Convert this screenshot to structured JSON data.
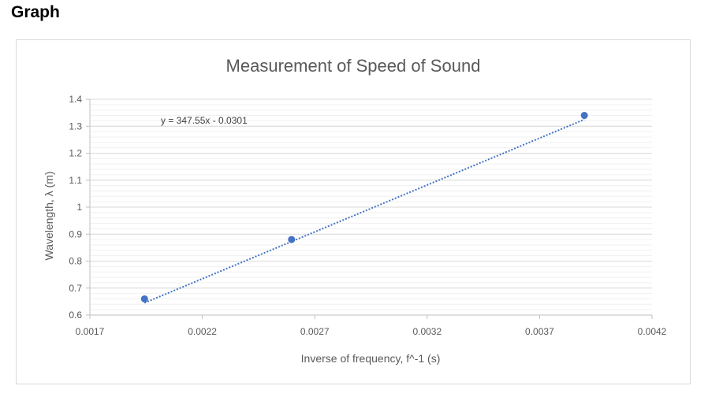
{
  "page": {
    "heading": "Graph"
  },
  "chart_data": {
    "type": "scatter",
    "title": "Measurement of Speed of Sound",
    "xlabel": "Inverse of frequency, f^-1 (s)",
    "ylabel": "Wavelength, λ (m)",
    "xlim": [
      0.0017,
      0.0042
    ],
    "ylim": [
      0.6,
      1.4
    ],
    "x_ticks": [
      0.0017,
      0.0022,
      0.0027,
      0.0032,
      0.0037,
      0.0042
    ],
    "x_tick_labels": [
      "0.0017",
      "0.0022",
      "0.0027",
      "0.0032",
      "0.0037",
      "0.0042"
    ],
    "y_ticks": [
      0.6,
      0.7,
      0.8,
      0.9,
      1.0,
      1.1,
      1.2,
      1.3,
      1.4
    ],
    "y_tick_labels": [
      "0.6",
      "0.7",
      "0.8",
      "0.9",
      "1",
      "1.1",
      "1.2",
      "1.3",
      "1.4"
    ],
    "minor_gridlines": true,
    "series": [
      {
        "points": [
          {
            "x": 0.001943,
            "y": 0.66
          },
          {
            "x": 0.002597,
            "y": 0.88
          },
          {
            "x": 0.003899,
            "y": 1.34
          }
        ],
        "color": "#4472c4"
      }
    ],
    "trendline": {
      "type": "linear",
      "slope": 347.55,
      "intercept": -0.0301,
      "equation_label": "y = 347.55x - 0.0301",
      "style": "dotted",
      "color": "#4472c4"
    }
  }
}
